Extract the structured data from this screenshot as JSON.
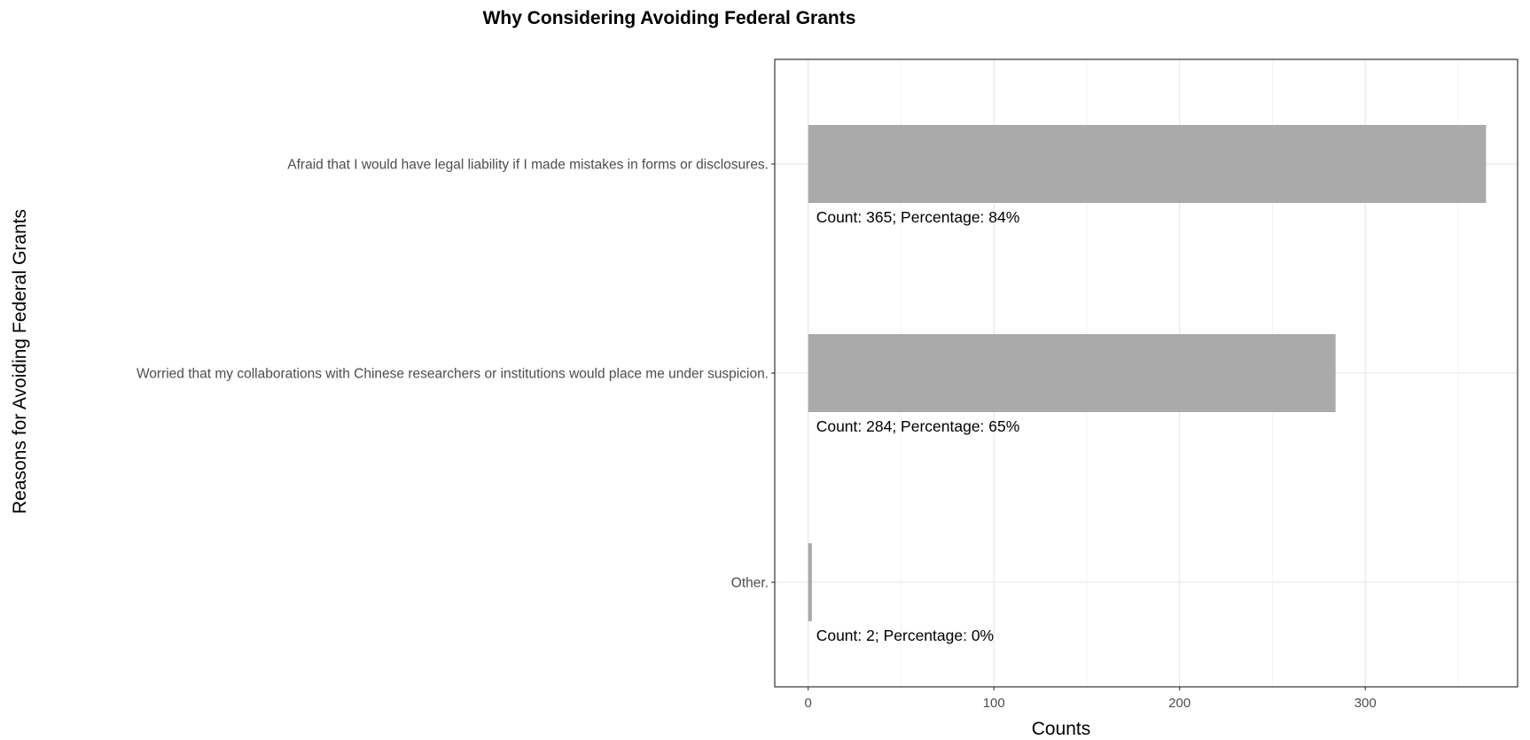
{
  "chart_data": {
    "type": "bar",
    "orientation": "horizontal",
    "title": "Why Considering Avoiding Federal Grants",
    "xlabel": "Counts",
    "ylabel": "Reasons for Avoiding Federal Grants",
    "categories": [
      "Afraid that I would have legal liability if I made mistakes in forms or disclosures.",
      "Worried that my collaborations with Chinese researchers or institutions would place me under suspicion.",
      "Other."
    ],
    "values": [
      365,
      284,
      2
    ],
    "data_labels": [
      "Count: 365; Percentage: 84%",
      "Count: 284; Percentage: 65%",
      "Count: 2; Percentage: 0%"
    ],
    "x_ticks": [
      "0",
      "100",
      "200",
      "300"
    ],
    "xlim": [
      -18,
      382
    ],
    "grid": true,
    "legend": "none",
    "bar_color": "#aaaaaa"
  }
}
